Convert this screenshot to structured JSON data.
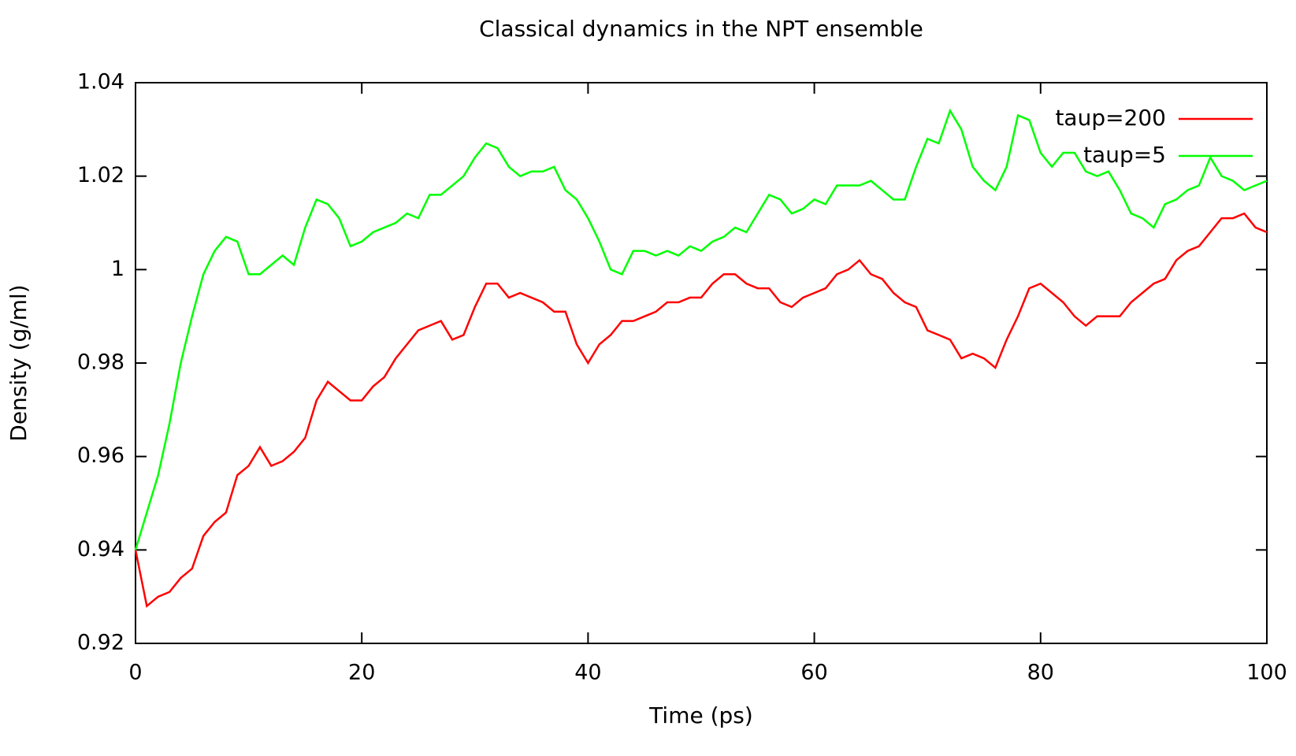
{
  "chart_data": {
    "type": "line",
    "title": "Classical dynamics in the NPT ensemble",
    "x_label": "Time (ps)",
    "y_label": "Density (g/ml)",
    "x": [
      0,
      1,
      2,
      3,
      4,
      5,
      6,
      7,
      8,
      9,
      10,
      11,
      12,
      13,
      14,
      15,
      16,
      17,
      18,
      19,
      20,
      21,
      22,
      23,
      24,
      25,
      26,
      27,
      28,
      29,
      30,
      31,
      32,
      33,
      34,
      35,
      36,
      37,
      38,
      39,
      40,
      41,
      42,
      43,
      44,
      45,
      46,
      47,
      48,
      49,
      50,
      51,
      52,
      53,
      54,
      55,
      56,
      57,
      58,
      59,
      60,
      61,
      62,
      63,
      64,
      65,
      66,
      67,
      68,
      69,
      70,
      71,
      72,
      73,
      74,
      75,
      76,
      77,
      78,
      79,
      80,
      81,
      82,
      83,
      84,
      85,
      86,
      87,
      88,
      89,
      90,
      91,
      92,
      93,
      94,
      95,
      96,
      97,
      98,
      99,
      100
    ],
    "series": [
      {
        "name": "taup=200",
        "color": "#ff0000",
        "values": [
          0.94,
          0.928,
          0.93,
          0.931,
          0.934,
          0.936,
          0.943,
          0.946,
          0.948,
          0.956,
          0.958,
          0.962,
          0.958,
          0.959,
          0.961,
          0.964,
          0.972,
          0.976,
          0.974,
          0.972,
          0.972,
          0.975,
          0.977,
          0.981,
          0.984,
          0.987,
          0.988,
          0.989,
          0.985,
          0.986,
          0.992,
          0.997,
          0.997,
          0.994,
          0.995,
          0.994,
          0.993,
          0.991,
          0.991,
          0.984,
          0.98,
          0.984,
          0.986,
          0.989,
          0.989,
          0.99,
          0.991,
          0.993,
          0.993,
          0.994,
          0.994,
          0.997,
          0.999,
          0.999,
          0.997,
          0.996,
          0.996,
          0.993,
          0.992,
          0.994,
          0.995,
          0.996,
          0.999,
          1.0,
          1.002,
          0.999,
          0.998,
          0.995,
          0.993,
          0.992,
          0.987,
          0.986,
          0.985,
          0.981,
          0.982,
          0.981,
          0.979,
          0.985,
          0.99,
          0.996,
          0.997,
          0.995,
          0.993,
          0.99,
          0.988,
          0.99,
          0.99,
          0.99,
          0.993,
          0.995,
          0.997,
          0.998,
          1.002,
          1.004,
          1.005,
          1.008,
          1.011,
          1.011,
          1.012,
          1.009,
          1.008
        ]
      },
      {
        "name": "taup=5",
        "color": "#00ff00",
        "values": [
          0.94,
          0.948,
          0.956,
          0.967,
          0.98,
          0.99,
          0.999,
          1.004,
          1.007,
          1.006,
          0.999,
          0.999,
          1.001,
          1.003,
          1.001,
          1.009,
          1.015,
          1.014,
          1.011,
          1.005,
          1.006,
          1.008,
          1.009,
          1.01,
          1.012,
          1.011,
          1.016,
          1.016,
          1.018,
          1.02,
          1.024,
          1.027,
          1.026,
          1.022,
          1.02,
          1.021,
          1.021,
          1.022,
          1.017,
          1.015,
          1.011,
          1.006,
          1.0,
          0.999,
          1.004,
          1.004,
          1.003,
          1.004,
          1.003,
          1.005,
          1.004,
          1.006,
          1.007,
          1.009,
          1.008,
          1.012,
          1.016,
          1.015,
          1.012,
          1.013,
          1.015,
          1.014,
          1.018,
          1.018,
          1.018,
          1.019,
          1.017,
          1.015,
          1.015,
          1.022,
          1.028,
          1.027,
          1.034,
          1.03,
          1.022,
          1.019,
          1.017,
          1.022,
          1.033,
          1.032,
          1.025,
          1.022,
          1.025,
          1.025,
          1.021,
          1.02,
          1.021,
          1.017,
          1.012,
          1.011,
          1.009,
          1.014,
          1.015,
          1.017,
          1.018,
          1.024,
          1.02,
          1.019,
          1.017,
          1.018,
          1.019
        ]
      }
    ],
    "xlim": [
      0,
      100
    ],
    "xticks": [
      0,
      20,
      40,
      60,
      80,
      100
    ],
    "ylim": [
      0.92,
      1.04
    ],
    "yticks": [
      0.92,
      0.94,
      0.96,
      0.98,
      1,
      1.02,
      1.04
    ],
    "grid": false,
    "legend": "upper right"
  }
}
